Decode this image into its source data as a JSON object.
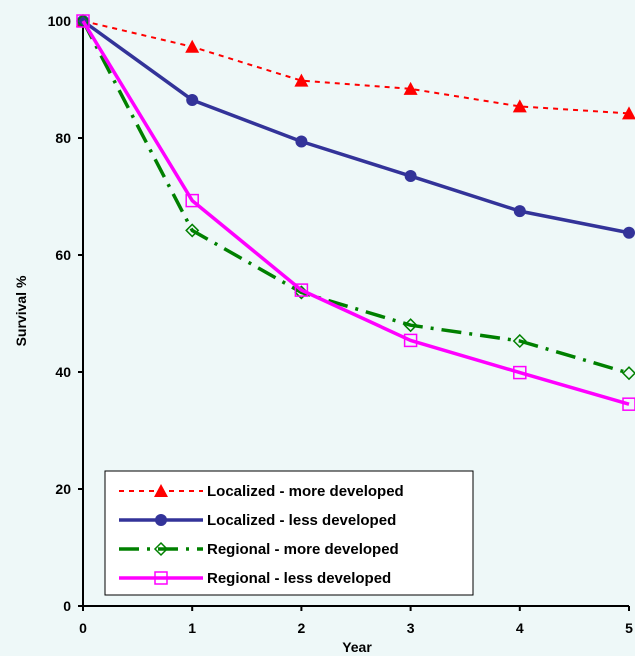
{
  "background_color": "#EEF8F8",
  "chart_data": {
    "type": "line",
    "title": "",
    "xlabel": "Year",
    "ylabel": "Survival %",
    "x": [
      0,
      1,
      2,
      3,
      4,
      5
    ],
    "xlim": [
      0,
      5
    ],
    "ylim": [
      0,
      100
    ],
    "x_ticks": [
      "0",
      "1",
      "2",
      "3",
      "4",
      "5"
    ],
    "y_ticks": [
      "0",
      "20",
      "40",
      "60",
      "80",
      "100"
    ],
    "grid": false,
    "legend_position": "bottom-left",
    "series": [
      {
        "name": "Localized - more developed",
        "values": [
          100,
          95.6,
          89.8,
          88.4,
          85.4,
          84.2
        ],
        "color": "#FF0000",
        "line_style": "dotted",
        "marker": "filled-triangle"
      },
      {
        "name": "Localized - less developed",
        "values": [
          100,
          86.5,
          79.4,
          73.5,
          67.5,
          63.8
        ],
        "color": "#333399",
        "line_style": "solid",
        "marker": "filled-circle"
      },
      {
        "name": "Regional - more developed",
        "values": [
          100,
          64.2,
          53.6,
          48.0,
          45.3,
          39.8
        ],
        "color": "#008000",
        "line_style": "dash-dot",
        "marker": "open-diamond"
      },
      {
        "name": "Regional - less developed",
        "values": [
          100,
          69.3,
          54.0,
          45.4,
          39.9,
          34.5
        ],
        "color": "#FF00FF",
        "line_style": "solid",
        "marker": "open-square"
      }
    ]
  }
}
